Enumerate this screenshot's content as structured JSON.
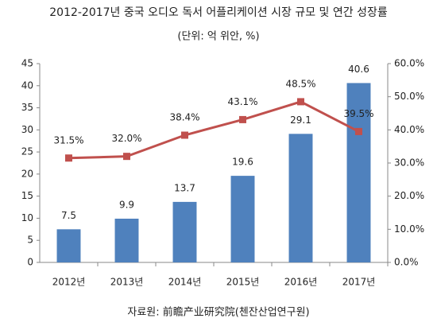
{
  "chart_data": {
    "type": "bar_line",
    "title": "2012-2017년 중국 오디오 독서 어플리케이션 시장 규모 및 연간 성장률",
    "subtitle": "(단위: 억 위안, %)",
    "source": "자료원: 前瞻产业研究院(첸잔산업연구원)",
    "categories": [
      "2012년",
      "2013년",
      "2014년",
      "2015년",
      "2016년",
      "2017년"
    ],
    "series": [
      {
        "type": "bar",
        "color": "#4f81bd",
        "values": [
          7.5,
          9.9,
          13.7,
          19.6,
          29.1,
          40.6
        ]
      },
      {
        "type": "line",
        "axis": "y2",
        "color": "#c0504d",
        "values": [
          31.5,
          32.0,
          38.4,
          43.1,
          48.5,
          39.5
        ],
        "value_labels": [
          "31.5%",
          "32.0%",
          "38.4%",
          "43.1%",
          "48.5%",
          "39.5%"
        ]
      }
    ],
    "ylim": [
      0,
      45
    ],
    "yticks": [
      0,
      5,
      10,
      15,
      20,
      25,
      30,
      35,
      40,
      45
    ],
    "y2lim": [
      0,
      60
    ],
    "y2ticks": [
      {
        "value": 0,
        "label": "0.0%"
      },
      {
        "value": 10,
        "label": "10.0%"
      },
      {
        "value": 20,
        "label": "20.0%"
      },
      {
        "value": 30,
        "label": "30.0%"
      },
      {
        "value": 40,
        "label": "40.0%"
      },
      {
        "value": 50,
        "label": "50.0%"
      },
      {
        "value": 60,
        "label": "60.0%"
      }
    ],
    "grid": false
  }
}
